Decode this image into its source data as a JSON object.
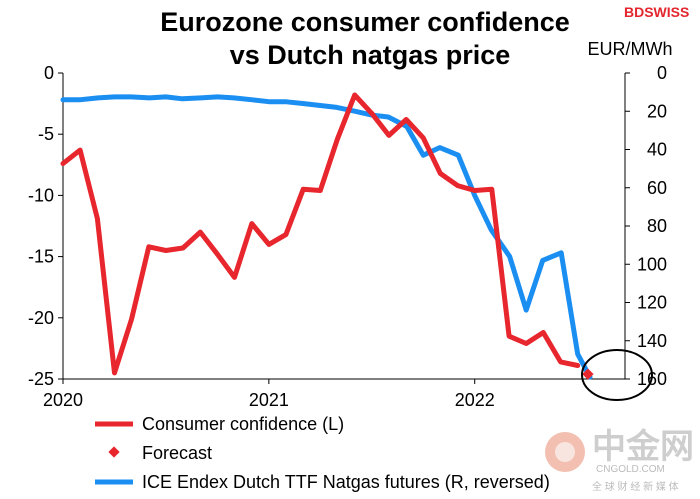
{
  "brand": {
    "logo_text": "BDSWISS",
    "color": "#e3262d"
  },
  "watermark": {
    "main": "中金网",
    "sub": "CNGOLD.COM",
    "tagline": "全 球 财 经 新 媒 体"
  },
  "chart_data": {
    "type": "line",
    "title_line1": "Eurozone consumer confidence",
    "title_line2": "vs Dutch natgas price",
    "right_axis_unit": "EUR/MWh",
    "x_tick_labels": [
      "2020",
      "2021",
      "2022"
    ],
    "x_ticks": [
      2020.0,
      2021.0,
      2022.0
    ],
    "xlim": [
      2020.0,
      2022.73
    ],
    "ylim_left": [
      -25,
      0
    ],
    "yticks_left": [
      0,
      -5,
      -10,
      -15,
      -20,
      -25
    ],
    "ylim_right_reversed": [
      0,
      160
    ],
    "yticks_right": [
      0,
      20,
      40,
      60,
      80,
      100,
      120,
      140,
      160
    ],
    "grid": false,
    "legend_position": "bottom-left",
    "series": [
      {
        "name": "Consumer confidence (L)",
        "axis": "left",
        "style": "line",
        "color": "#e8262d",
        "x": [
          2020.0,
          2020.083,
          2020.167,
          2020.25,
          2020.333,
          2020.417,
          2020.5,
          2020.583,
          2020.667,
          2020.75,
          2020.833,
          2020.917,
          2021.0,
          2021.083,
          2021.167,
          2021.25,
          2021.333,
          2021.417,
          2021.5,
          2021.583,
          2021.667,
          2021.75,
          2021.833,
          2021.917,
          2022.0,
          2022.083,
          2022.167,
          2022.25,
          2022.333,
          2022.417,
          2022.5
        ],
        "values": [
          -7.4,
          -6.3,
          -11.9,
          -24.5,
          -20.1,
          -14.2,
          -14.5,
          -14.3,
          -13.0,
          -14.8,
          -16.7,
          -12.3,
          -14.0,
          -13.2,
          -9.5,
          -9.6,
          -5.4,
          -1.8,
          -3.3,
          -5.1,
          -3.8,
          -5.3,
          -8.2,
          -9.2,
          -9.6,
          -9.5,
          -21.5,
          -22.1,
          -21.2,
          -23.6,
          -23.9
        ]
      },
      {
        "name": "Forecast",
        "axis": "left",
        "style": "marker",
        "color": "#e8262d",
        "x": [
          2022.55
        ],
        "values": [
          -24.6
        ]
      },
      {
        "name": "ICE Endex Dutch TTF Natgas futures (R, reversed)",
        "axis": "right",
        "style": "line",
        "color": "#1b8ef2",
        "x": [
          2020.0,
          2020.08,
          2020.17,
          2020.25,
          2020.33,
          2020.42,
          2020.5,
          2020.58,
          2020.67,
          2020.75,
          2020.83,
          2020.92,
          2021.0,
          2021.08,
          2021.17,
          2021.25,
          2021.33,
          2021.42,
          2021.5,
          2021.58,
          2021.67,
          2021.75,
          2021.83,
          2021.92,
          2022.0,
          2022.08,
          2022.17,
          2022.25,
          2022.33,
          2022.42,
          2022.5,
          2022.56
        ],
        "values": [
          14,
          14,
          13,
          12.5,
          12.5,
          13,
          12.5,
          13.5,
          13,
          12.5,
          13,
          14,
          15,
          15,
          16,
          17,
          18,
          20,
          22,
          23,
          28,
          43,
          39,
          43,
          64,
          82,
          96,
          124,
          98,
          94,
          147,
          159
        ]
      }
    ]
  }
}
